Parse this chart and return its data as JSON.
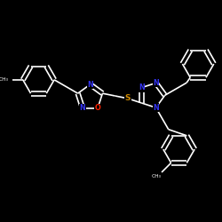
{
  "bg": "#000000",
  "bond_color": "#ffffff",
  "N_color": "#3333ee",
  "O_color": "#ff2200",
  "S_color": "#cc8800",
  "lw": 1.2,
  "doff": 0.1,
  "fs": 5.8,
  "xlim": [
    0,
    10
  ],
  "ylim": [
    0,
    10
  ],
  "r_hex": 0.75,
  "r_penta": 0.62,
  "figsize": [
    2.5,
    2.5
  ],
  "dpi": 100
}
